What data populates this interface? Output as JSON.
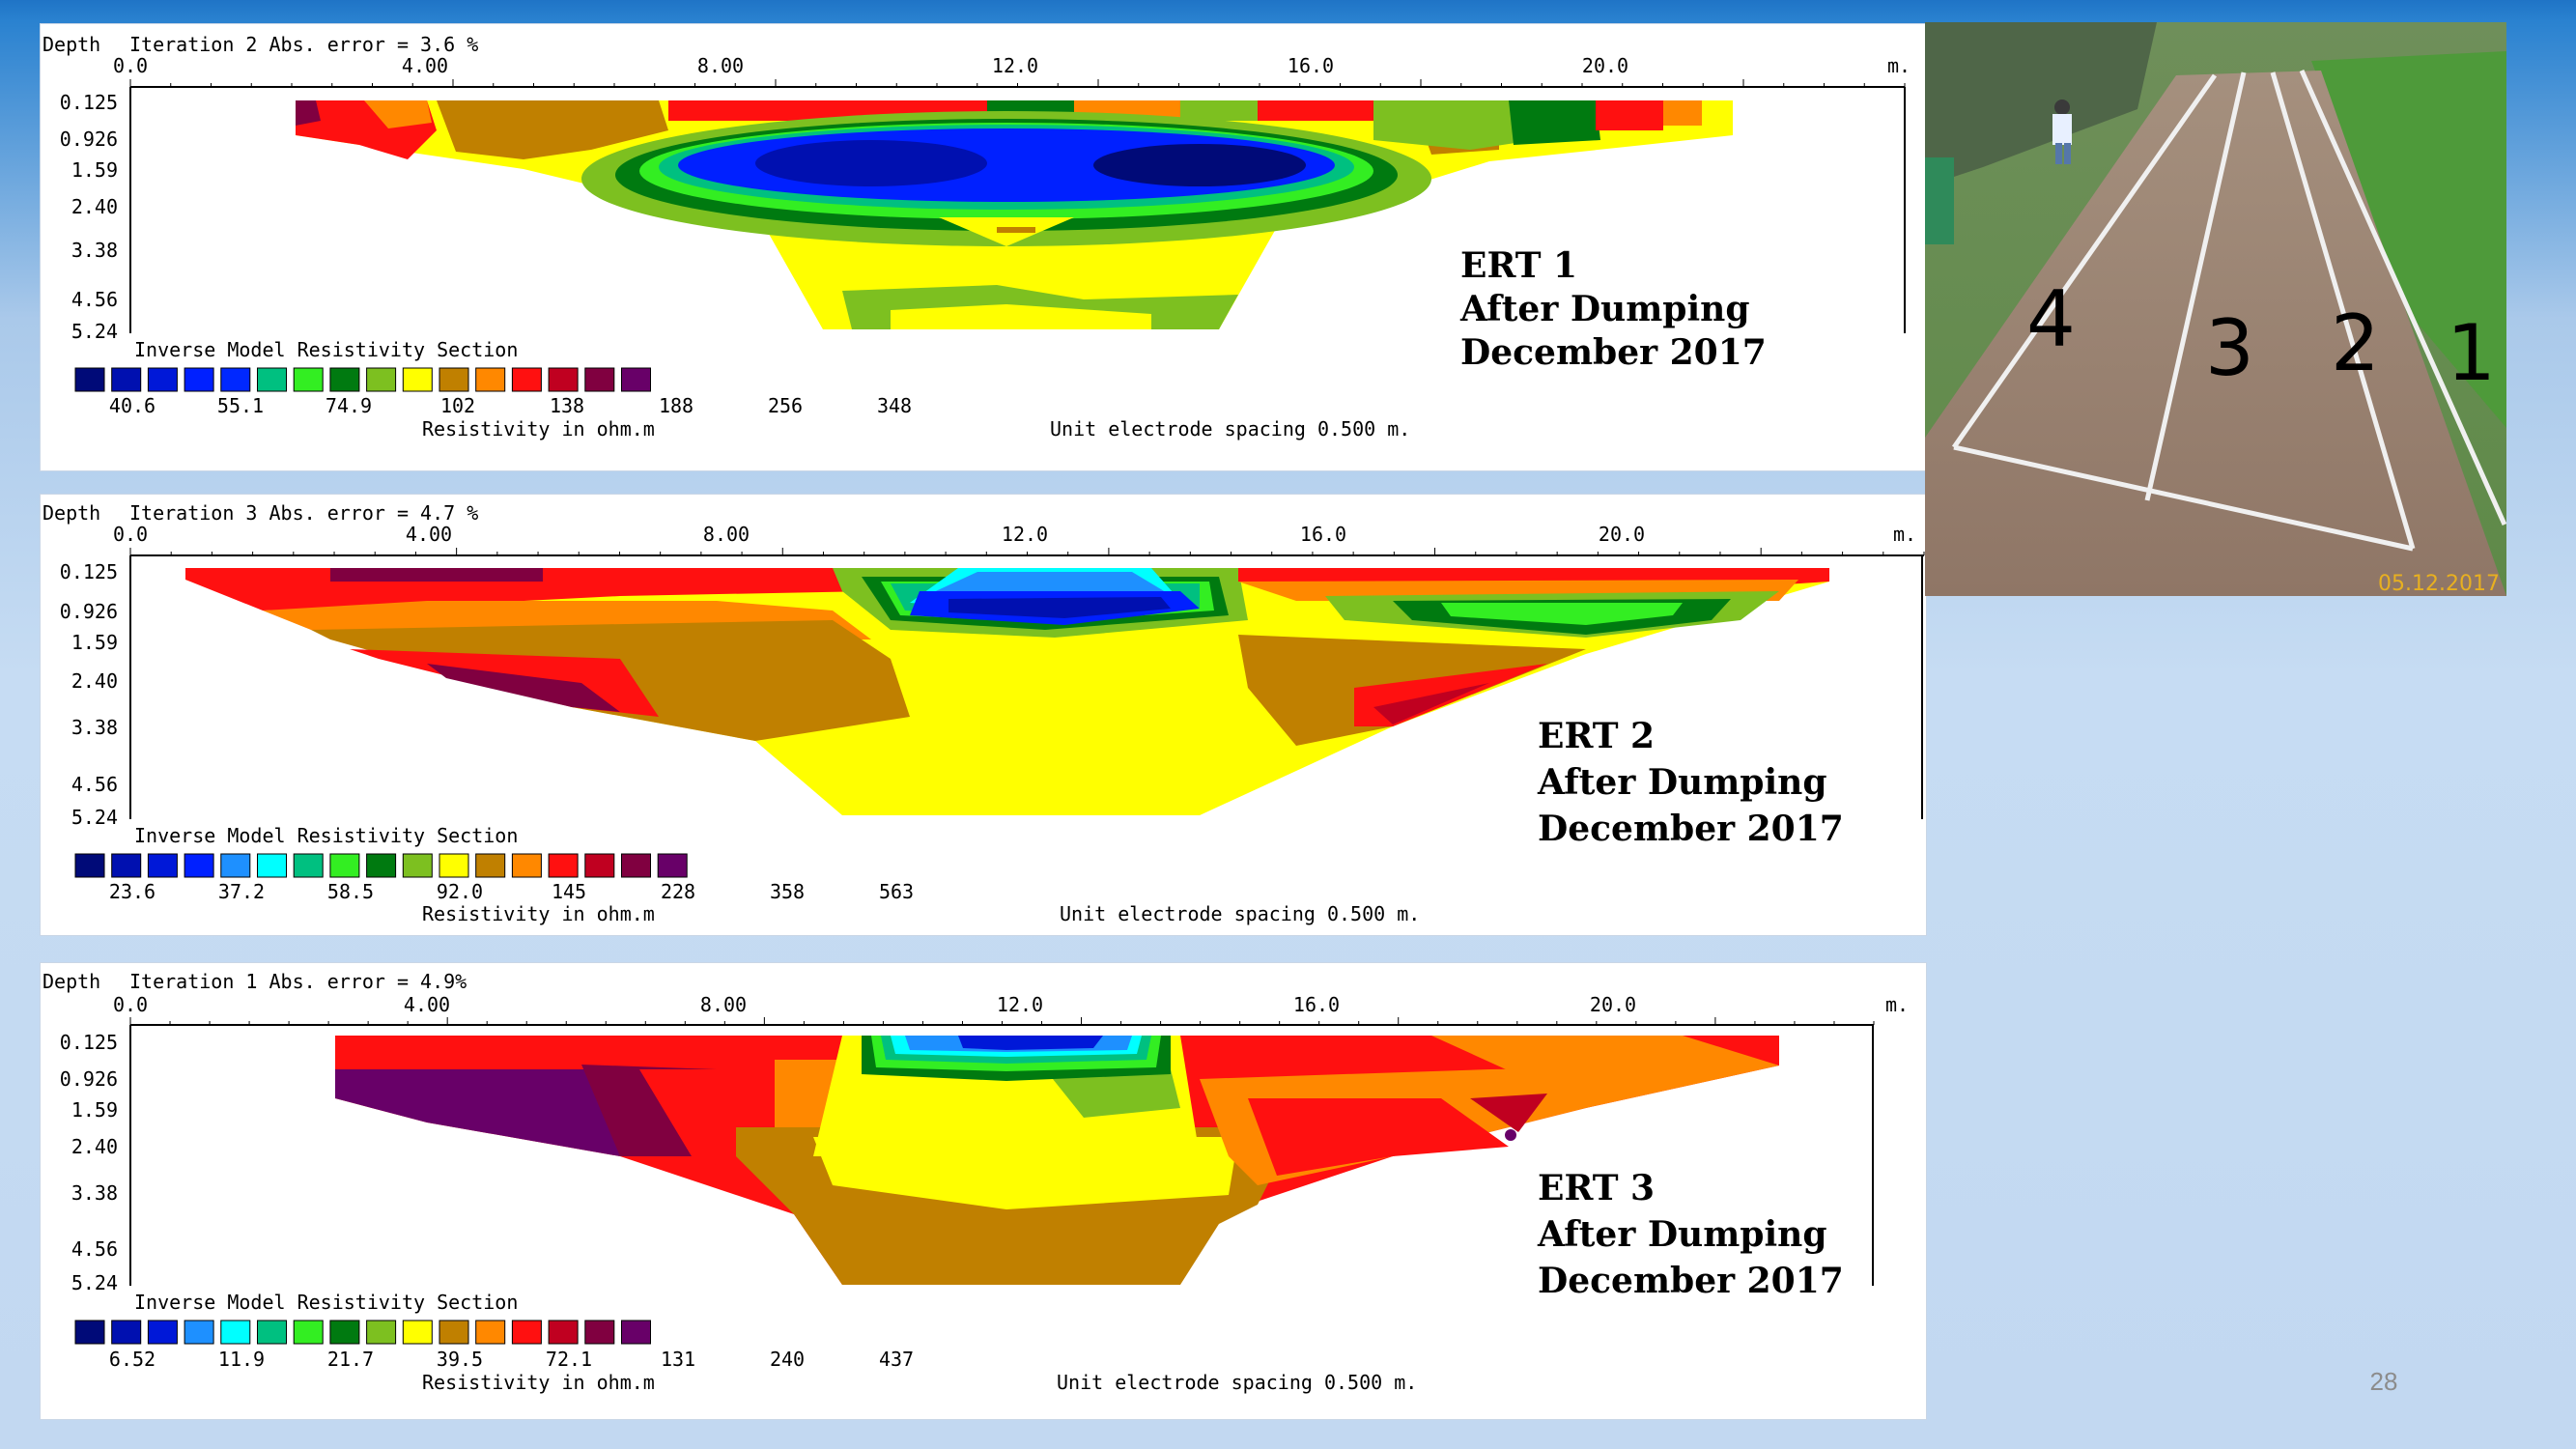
{
  "chart_data": [
    {
      "type": "heatmap",
      "depth_label": "Depth",
      "header_text": "Iteration 2 Abs. error = 3.6 %",
      "x_ticks": [
        "0.0",
        "4.00",
        "8.00",
        "12.0",
        "16.0",
        "20.0"
      ],
      "x_unit": "m.",
      "depth_ticks": [
        "0.125",
        "0.926",
        "1.59",
        "2.40",
        "3.38",
        "4.56",
        "5.24"
      ],
      "section_title": "Inverse Model Resistivity Section",
      "legend_labels": [
        "40.6",
        "55.1",
        "74.9",
        "102",
        "138",
        "188",
        "256",
        "348"
      ],
      "legend_colors": [
        "#000a78",
        "#0010b0",
        "#0018d8",
        "#0020ff",
        "#0028ff",
        "#00c080",
        "#33ee22",
        "#007a10",
        "#7dc020",
        "#ffff00",
        "#c08000",
        "#ff8800",
        "#ff1010",
        "#c00020",
        "#800040",
        "#680068"
      ],
      "unit_label": "Resistivity in ohm.m",
      "spacing_label": "Unit electrode spacing 0.500 m.",
      "ert_title": "ERT 1",
      "ert_line2": "After Dumping",
      "ert_line3": "December 2017"
    },
    {
      "type": "heatmap",
      "depth_label": "Depth",
      "header_text": "Iteration 3 Abs. error = 4.7 %",
      "x_ticks": [
        "0.0",
        "4.00",
        "8.00",
        "12.0",
        "16.0",
        "20.0"
      ],
      "x_unit": "m.",
      "depth_ticks": [
        "0.125",
        "0.926",
        "1.59",
        "2.40",
        "3.38",
        "4.56",
        "5.24"
      ],
      "section_title": "Inverse Model Resistivity Section",
      "legend_labels": [
        "23.6",
        "37.2",
        "58.5",
        "92.0",
        "145",
        "228",
        "358",
        "563"
      ],
      "legend_colors": [
        "#000a78",
        "#0010b0",
        "#0018d8",
        "#0020ff",
        "#1e90ff",
        "#00ffff",
        "#00c080",
        "#33ee22",
        "#007a10",
        "#7dc020",
        "#ffff00",
        "#c08000",
        "#ff8800",
        "#ff1010",
        "#c00020",
        "#800040",
        "#680068"
      ],
      "unit_label": "Resistivity in ohm.m",
      "spacing_label": "Unit electrode spacing 0.500 m.",
      "ert_title": "ERT 2",
      "ert_line2": "After Dumping",
      "ert_line3": "December 2017"
    },
    {
      "type": "heatmap",
      "depth_label": "Depth",
      "header_text": "Iteration 1 Abs. error = 4.9%",
      "x_ticks": [
        "0.0",
        "4.00",
        "8.00",
        "12.0",
        "16.0",
        "20.0"
      ],
      "x_unit": "m.",
      "depth_ticks": [
        "0.125",
        "0.926",
        "1.59",
        "2.40",
        "3.38",
        "4.56",
        "5.24"
      ],
      "section_title": "Inverse Model Resistivity Section",
      "legend_labels": [
        "6.52",
        "11.9",
        "21.7",
        "39.5",
        "72.1",
        "131",
        "240",
        "437"
      ],
      "legend_colors": [
        "#000a78",
        "#0010b0",
        "#0018d8",
        "#1e90ff",
        "#00ffff",
        "#00c080",
        "#33ee22",
        "#007a10",
        "#7dc020",
        "#ffff00",
        "#c08000",
        "#ff8800",
        "#ff1010",
        "#c00020",
        "#800040",
        "#680068"
      ],
      "unit_label": "Resistivity in ohm.m",
      "spacing_label": "Unit electrode spacing 0.500 m.",
      "ert_title": "ERT 3",
      "ert_line2": "After Dumping",
      "ert_line3": "December 2017"
    }
  ],
  "photo": {
    "line_labels": [
      "4",
      "3",
      "2",
      "1"
    ],
    "date_stamp": "05.12.2017"
  },
  "page_number": "28"
}
